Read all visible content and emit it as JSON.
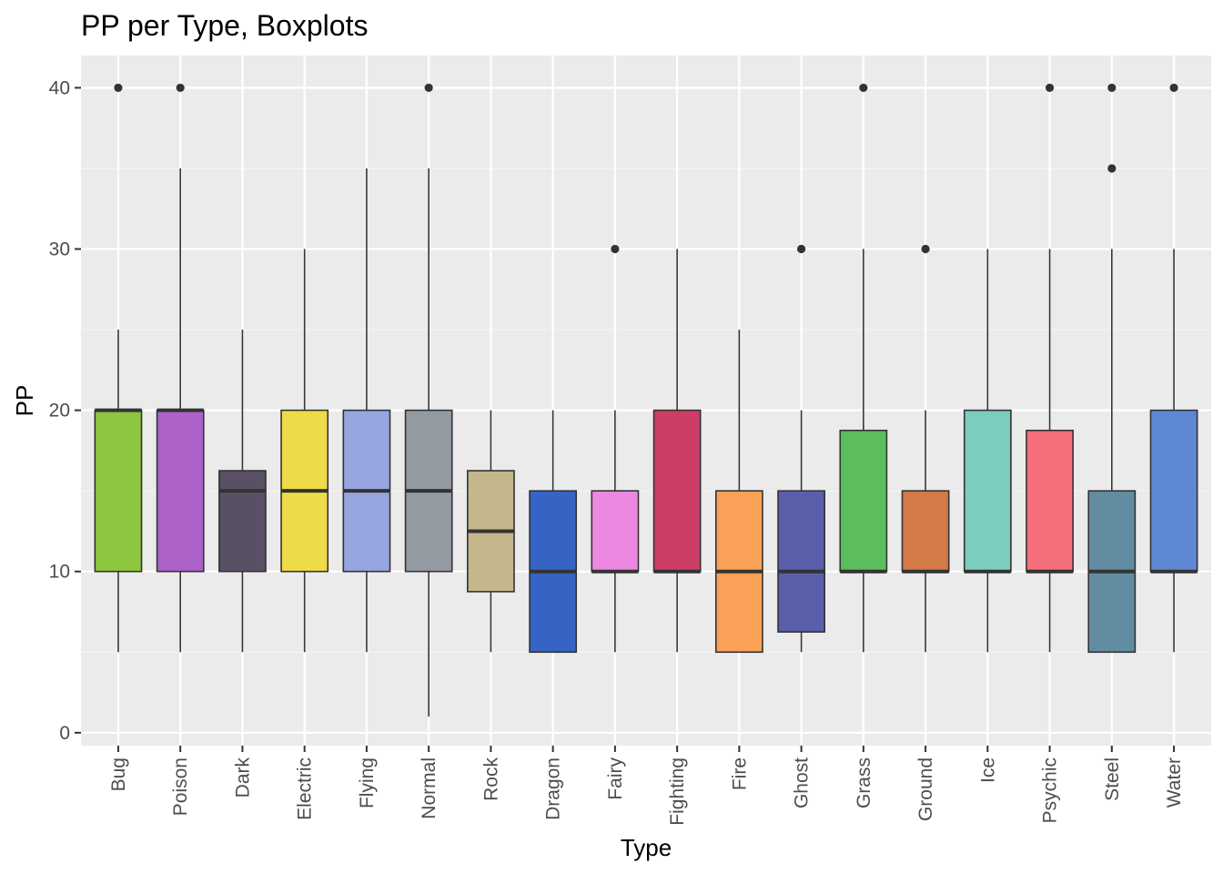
{
  "chart_data": {
    "type": "boxplot",
    "title": "PP per Type, Boxplots",
    "xlabel": "Type",
    "ylabel": "PP",
    "ylim": [
      -0.8,
      42
    ],
    "yticks": [
      0,
      10,
      20,
      30,
      40
    ],
    "grid": true,
    "legend": "none",
    "categories": [
      "Bug",
      "Poison",
      "Dark",
      "Electric",
      "Flying",
      "Normal",
      "Rock",
      "Dragon",
      "Fairy",
      "Fighting",
      "Fire",
      "Ghost",
      "Grass",
      "Ground",
      "Ice",
      "Psychic",
      "Steel",
      "Water"
    ],
    "boxes": [
      {
        "category": "Bug",
        "color": "#8dc63f",
        "min": 5,
        "q1": 10,
        "median": 20,
        "q3": 20,
        "max": 25,
        "outliers": [
          40
        ]
      },
      {
        "category": "Poison",
        "color": "#ac62c8",
        "min": 5,
        "q1": 10,
        "median": 20,
        "q3": 20,
        "max": 35,
        "outliers": [
          40
        ]
      },
      {
        "category": "Dark",
        "color": "#5a5065",
        "min": 5,
        "q1": 10,
        "median": 15,
        "q3": 16.25,
        "max": 25,
        "outliers": []
      },
      {
        "category": "Electric",
        "color": "#eedb47",
        "min": 5,
        "q1": 10,
        "median": 15,
        "q3": 20,
        "max": 30,
        "outliers": []
      },
      {
        "category": "Flying",
        "color": "#96a5e0",
        "min": 5,
        "q1": 10,
        "median": 15,
        "q3": 20,
        "max": 35,
        "outliers": []
      },
      {
        "category": "Normal",
        "color": "#939aa1",
        "min": 1,
        "q1": 10,
        "median": 15,
        "q3": 20,
        "max": 35,
        "outliers": [
          40
        ]
      },
      {
        "category": "Rock",
        "color": "#c4b78b",
        "min": 5,
        "q1": 8.75,
        "median": 12.5,
        "q3": 16.25,
        "max": 20,
        "outliers": []
      },
      {
        "category": "Dragon",
        "color": "#3764c4",
        "min": 5,
        "q1": 5,
        "median": 10,
        "q3": 15,
        "max": 20,
        "outliers": []
      },
      {
        "category": "Fairy",
        "color": "#ec88e1",
        "min": 5,
        "q1": 10,
        "median": 10,
        "q3": 15,
        "max": 20,
        "outliers": [
          30
        ]
      },
      {
        "category": "Fighting",
        "color": "#cb3e66",
        "min": 5,
        "q1": 10,
        "median": 10,
        "q3": 20,
        "max": 30,
        "outliers": []
      },
      {
        "category": "Fire",
        "color": "#f9a257",
        "min": 5,
        "q1": 5,
        "median": 10,
        "q3": 15,
        "max": 25,
        "outliers": []
      },
      {
        "category": "Ghost",
        "color": "#5b5fab",
        "min": 5,
        "q1": 6.25,
        "median": 10,
        "q3": 15,
        "max": 20,
        "outliers": [
          30
        ]
      },
      {
        "category": "Grass",
        "color": "#5bbd5b",
        "min": 5,
        "q1": 10,
        "median": 10,
        "q3": 18.75,
        "max": 30,
        "outliers": [
          40
        ]
      },
      {
        "category": "Ground",
        "color": "#d37a47",
        "min": 5,
        "q1": 10,
        "median": 10,
        "q3": 15,
        "max": 20,
        "outliers": [
          30
        ]
      },
      {
        "category": "Ice",
        "color": "#7bcdbd",
        "min": 5,
        "q1": 10,
        "median": 10,
        "q3": 20,
        "max": 30,
        "outliers": []
      },
      {
        "category": "Psychic",
        "color": "#f46f79",
        "min": 5,
        "q1": 10,
        "median": 10,
        "q3": 18.75,
        "max": 30,
        "outliers": [
          40
        ]
      },
      {
        "category": "Steel",
        "color": "#628ca2",
        "min": 5,
        "q1": 5,
        "median": 10,
        "q3": 15,
        "max": 30,
        "outliers": [
          35,
          40
        ]
      },
      {
        "category": "Water",
        "color": "#5e88d4",
        "min": 5,
        "q1": 10,
        "median": 10,
        "q3": 20,
        "max": 30,
        "outliers": [
          40
        ]
      }
    ]
  }
}
